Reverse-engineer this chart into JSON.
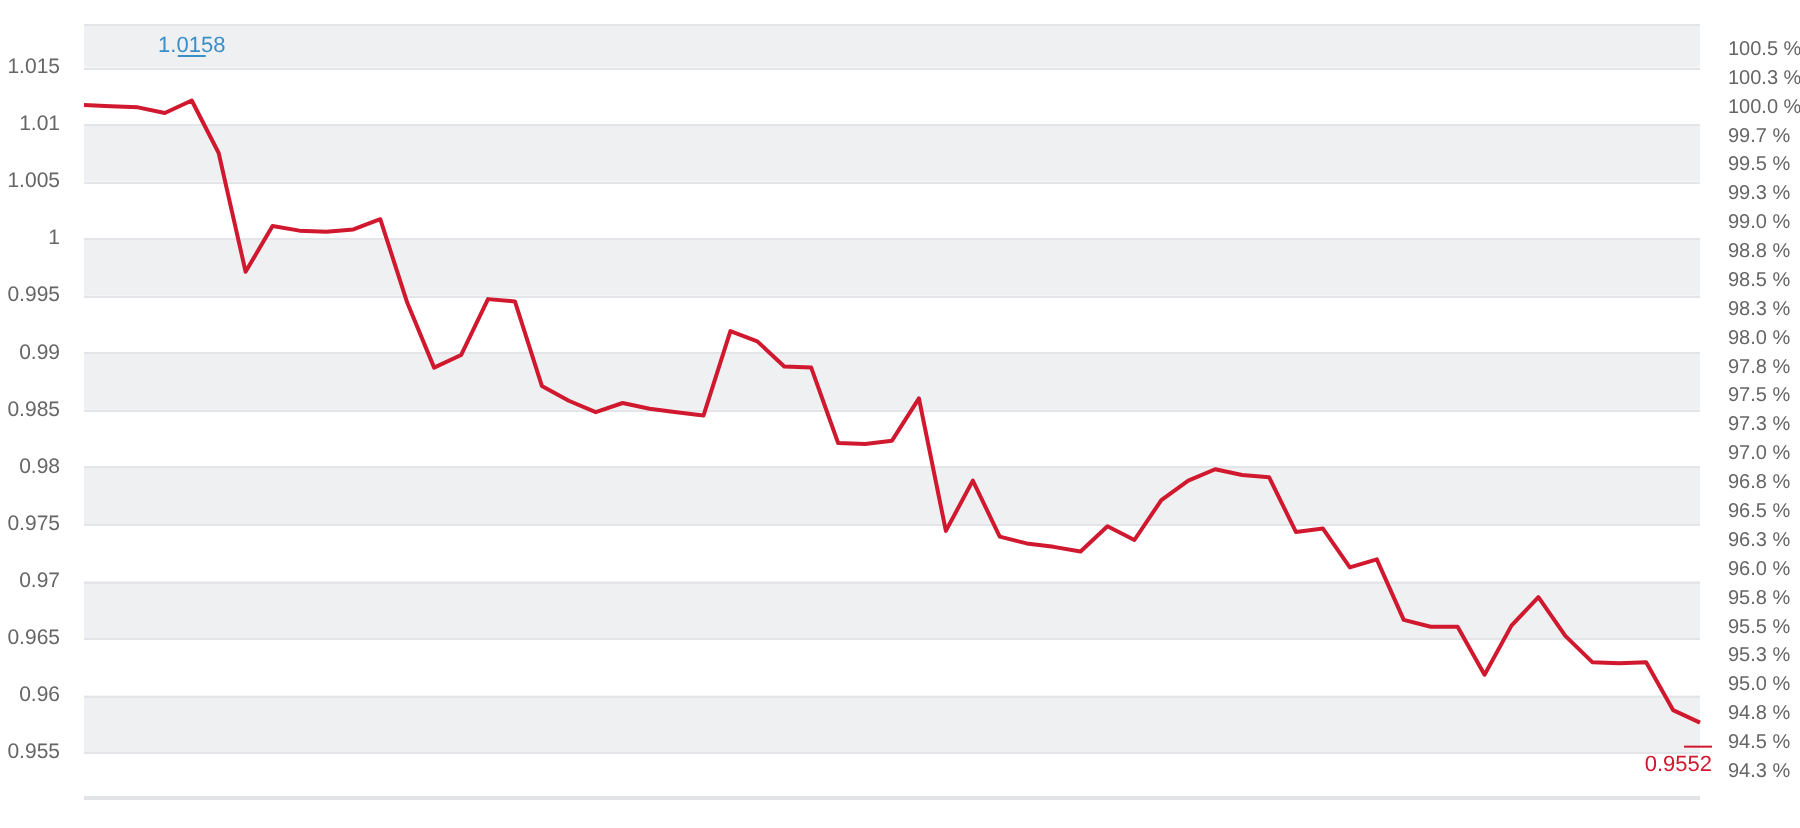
{
  "chart_data": {
    "type": "line",
    "categories": [
      null,
      null,
      null,
      null,
      null,
      null,
      null,
      null,
      null,
      null,
      null,
      null,
      null,
      null,
      null,
      null,
      null,
      null,
      null,
      null,
      null,
      null,
      null,
      null,
      null,
      null,
      null,
      null,
      null,
      null,
      null,
      null,
      null,
      null,
      null,
      null,
      null,
      null,
      null,
      null,
      null,
      null,
      null,
      null,
      null,
      null,
      null,
      null,
      null,
      null,
      null,
      null,
      null,
      null,
      null,
      null,
      null,
      null,
      null,
      null,
      null
    ],
    "series": [
      {
        "color": "#d0182e",
        "values": [
          1.0117,
          1.0116,
          1.0115,
          1.011,
          1.0121,
          1.0075,
          0.9971,
          1.0011,
          1.0007,
          1.0006,
          1.0008,
          1.0017,
          0.9944,
          0.9887,
          0.9898,
          0.9947,
          0.9945,
          0.9871,
          0.9858,
          0.9848,
          0.9856,
          0.9851,
          0.9848,
          0.9845,
          0.9919,
          0.991,
          0.9888,
          0.9887,
          0.9821,
          0.982,
          0.9823,
          0.986,
          0.9744,
          0.9788,
          0.9739,
          0.9733,
          0.973,
          0.9726,
          0.9748,
          0.9736,
          0.9771,
          0.9788,
          0.9798,
          0.9793,
          0.9791,
          0.9743,
          0.9746,
          0.9712,
          0.9719,
          0.9666,
          0.966,
          0.966,
          0.9618,
          0.9661,
          0.9686,
          0.9652,
          0.9629,
          0.9628,
          0.9629,
          0.9587,
          0.9576
        ]
      }
    ],
    "ylim": [
      0.951,
      1.0188
    ],
    "yticks": [
      0.955,
      0.96,
      0.965,
      0.97,
      0.975,
      0.98,
      0.985,
      0.99,
      0.995,
      {
        "value": 1,
        "label": "1"
      },
      1.005,
      1.01,
      1.015
    ],
    "y2lim": [
      94.02,
      100.72
    ],
    "y2ticks": [
      {
        "value": 94.25,
        "label": "94.3 %"
      },
      {
        "value": 94.5,
        "label": "94.5 %"
      },
      {
        "value": 94.75,
        "label": "94.8 %"
      },
      {
        "value": 95,
        "label": "95.0 %"
      },
      {
        "value": 95.25,
        "label": "95.3 %"
      },
      {
        "value": 95.5,
        "label": "95.5 %"
      },
      {
        "value": 95.75,
        "label": "95.8 %"
      },
      {
        "value": 96,
        "label": "96.0 %"
      },
      {
        "value": 96.25,
        "label": "96.3 %"
      },
      {
        "value": 96.5,
        "label": "96.5 %"
      },
      {
        "value": 96.75,
        "label": "96.8 %"
      },
      {
        "value": 97,
        "label": "97.0 %"
      },
      {
        "value": 97.25,
        "label": "97.3 %"
      },
      {
        "value": 97.5,
        "label": "97.5 %"
      },
      {
        "value": 97.75,
        "label": "97.8 %"
      },
      {
        "value": 98,
        "label": "98.0 %"
      },
      {
        "value": 98.25,
        "label": "98.3 %"
      },
      {
        "value": 98.5,
        "label": "98.5 %"
      },
      {
        "value": 98.75,
        "label": "98.8 %"
      },
      {
        "value": 99,
        "label": "99.0 %"
      },
      {
        "value": 99.25,
        "label": "99.3 %"
      },
      {
        "value": 99.5,
        "label": "99.5 %"
      },
      {
        "value": 99.75,
        "label": "99.7 %"
      },
      {
        "value": 100,
        "label": "100.0 %"
      },
      {
        "value": 100.25,
        "label": "100.3 %"
      },
      {
        "value": 100.5,
        "label": "100.5 %"
      }
    ],
    "annotations": [
      "1.0158",
      "0.9552"
    ],
    "grid": "y",
    "marker": "none",
    "line_style": "solid",
    "legend": false,
    "tick_labels": "y"
  }
}
